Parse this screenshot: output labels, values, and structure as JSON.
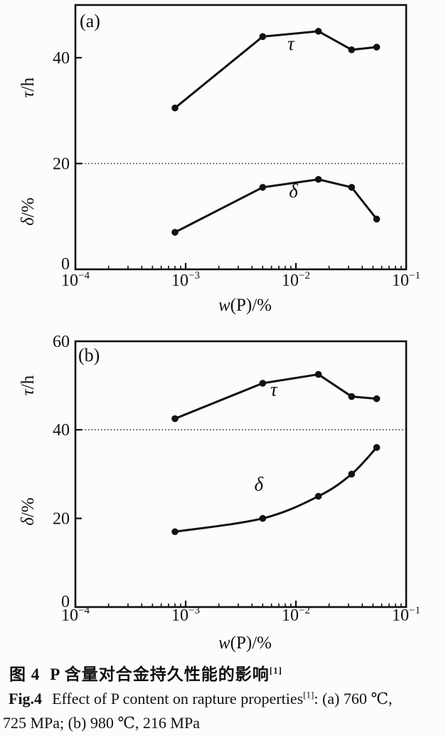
{
  "figure": {
    "caption_zh": {
      "label": "图 4",
      "text": "P 含量对合金持久性能的影响",
      "sup": "[1]"
    },
    "caption_en": {
      "label": "Fig.4",
      "text": "Effect of P content on rapture properties",
      "sup": "[1]",
      "after": ": (a) 760 ℃,",
      "line2": "725 MPa; (b) 980 ℃, 216 MPa"
    }
  },
  "chart_data": [
    {
      "type": "line",
      "panel": "(a)",
      "condition": "760 ℃, 725 MPa",
      "x_scale": "log",
      "xlim": [
        0.0001,
        0.1
      ],
      "xlabel": {
        "sym": "w",
        "rest": "(P)/%"
      },
      "x_ticks": [
        {
          "base": "10",
          "exp": "−4",
          "value": 0.0001
        },
        {
          "base": "10",
          "exp": "−3",
          "value": 0.001
        },
        {
          "base": "10",
          "exp": "−2",
          "value": 0.01
        },
        {
          "base": "10",
          "exp": "−1",
          "value": 0.1
        }
      ],
      "ylim": [
        0,
        50
      ],
      "y_ticks": [
        0,
        20,
        40
      ],
      "ref_line_y": 20,
      "grid": "reference-line-only",
      "legend_position": "inline-labels",
      "ylabel_top": {
        "sym": "τ",
        "rest": "/h"
      },
      "ylabel_bottom": {
        "sym": "δ",
        "rest": "/%"
      },
      "x": [
        0.0008,
        0.005,
        0.016,
        0.032,
        0.054
      ],
      "series": [
        {
          "name": "τ",
          "values": [
            30.5,
            44,
            45,
            41.5,
            42
          ],
          "label_at": [
            0.009,
            41.5
          ],
          "smooth": false
        },
        {
          "name": "δ",
          "values": [
            7,
            15.5,
            17,
            15.5,
            9.5
          ],
          "label_at": [
            0.0095,
            13.6
          ],
          "smooth": false
        }
      ]
    },
    {
      "type": "line",
      "panel": "(b)",
      "condition": "980 ℃, 216 MPa",
      "x_scale": "log",
      "xlim": [
        0.0001,
        0.1
      ],
      "xlabel": {
        "sym": "w",
        "rest": "(P)/%"
      },
      "x_ticks": [
        {
          "base": "10",
          "exp": "−4",
          "value": 0.0001
        },
        {
          "base": "10",
          "exp": "−3",
          "value": 0.001
        },
        {
          "base": "10",
          "exp": "−2",
          "value": 0.01
        },
        {
          "base": "10",
          "exp": "−1",
          "value": 0.1
        }
      ],
      "ylim": [
        0,
        60
      ],
      "y_ticks": [
        0,
        20,
        40,
        60
      ],
      "ref_line_y": 40,
      "grid": "reference-line-only",
      "legend_position": "inline-labels",
      "ylabel_top": {
        "sym": "τ",
        "rest": "/h"
      },
      "ylabel_bottom": {
        "sym": "δ",
        "rest": "/%"
      },
      "x": [
        0.0008,
        0.005,
        0.016,
        0.032,
        0.054
      ],
      "series": [
        {
          "name": "τ",
          "values": [
            42.5,
            50.5,
            52.5,
            47.5,
            47
          ],
          "label_at": [
            0.0063,
            47.7
          ],
          "smooth": false
        },
        {
          "name": "δ",
          "values": [
            17,
            20,
            25,
            30,
            36
          ],
          "label_at": [
            0.0046,
            26.3
          ],
          "smooth": true
        }
      ]
    }
  ],
  "ink_color": "#111111",
  "paper_color": "#fcfcfa"
}
